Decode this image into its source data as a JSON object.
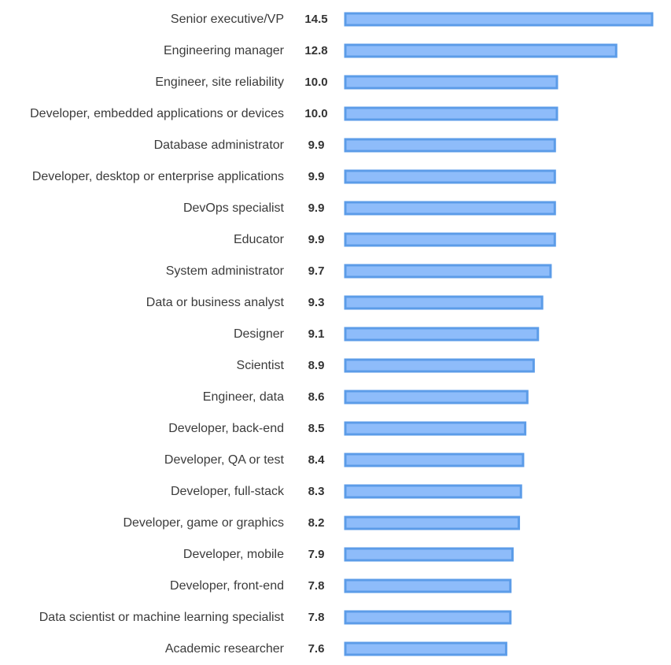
{
  "chart_data": {
    "type": "bar",
    "orientation": "horizontal",
    "categories": [
      "Senior executive/VP",
      "Engineering manager",
      "Engineer, site reliability",
      "Developer, embedded applications or devices",
      "Database administrator",
      "Developer, desktop or enterprise applications",
      "DevOps specialist",
      "Educator",
      "System administrator",
      "Data or business analyst",
      "Designer",
      "Scientist",
      "Engineer, data",
      "Developer, back-end",
      "Developer, QA or test",
      "Developer, full-stack",
      "Developer, game or graphics",
      "Developer, mobile",
      "Developer, front-end",
      "Data scientist or machine learning specialist",
      "Academic researcher"
    ],
    "values": [
      14.5,
      12.8,
      10.0,
      10.0,
      9.9,
      9.9,
      9.9,
      9.9,
      9.7,
      9.3,
      9.1,
      8.9,
      8.6,
      8.5,
      8.4,
      8.3,
      8.2,
      7.9,
      7.8,
      7.8,
      7.6
    ],
    "value_labels": [
      "14.5",
      "12.8",
      "10.0",
      "10.0",
      "9.9",
      "9.9",
      "9.9",
      "9.9",
      "9.7",
      "9.3",
      "9.1",
      "8.9",
      "8.6",
      "8.5",
      "8.4",
      "8.3",
      "8.2",
      "7.9",
      "7.8",
      "7.8",
      "7.6"
    ],
    "xlim": [
      0,
      14.5
    ],
    "grid": false,
    "colors": {
      "bar_fill": "#8ebcfa",
      "bar_border": "#5c9ce8"
    }
  }
}
